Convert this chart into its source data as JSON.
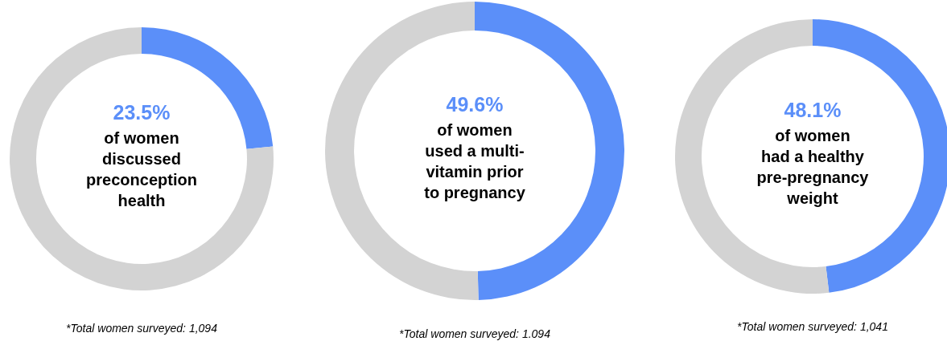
{
  "chart_data": [
    {
      "type": "donut",
      "categories": [
        null,
        null
      ],
      "values": [
        23.5,
        76.5
      ],
      "colors": [
        "#5b8ff9",
        "#d3d3d3"
      ],
      "value_labels": [
        "23.5%",
        null
      ],
      "annotations": [
        "of women\ndiscussed\npreconception\nhealth",
        "*Total women surveyed: 1,094"
      ]
    },
    {
      "type": "donut",
      "categories": [
        null,
        null
      ],
      "values": [
        49.6,
        50.4
      ],
      "colors": [
        "#5b8ff9",
        "#d3d3d3"
      ],
      "value_labels": [
        "49.6%",
        null
      ],
      "annotations": [
        "of women\nused a multi-\nvitamin prior\nto pregnancy",
        "*Total women surveyed: 1.094"
      ]
    },
    {
      "type": "donut",
      "categories": [
        null,
        null
      ],
      "values": [
        48.1,
        51.9
      ],
      "colors": [
        "#5b8ff9",
        "#d3d3d3"
      ],
      "value_labels": [
        "48.1%",
        null
      ],
      "annotations": [
        "of women\nhad a healthy\npre-pregnancy\nweight",
        "*Total women surveyed: 1,041"
      ]
    }
  ]
}
